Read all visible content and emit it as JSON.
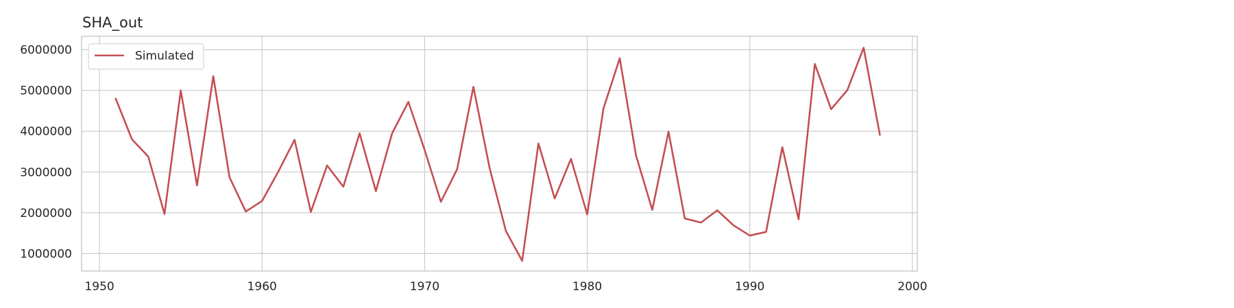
{
  "chart_data": {
    "type": "line",
    "title": "SHA_out",
    "xlabel": "",
    "ylabel": "",
    "xlim": [
      1948.9,
      2000.3
    ],
    "ylim": [
      570000,
      6330000
    ],
    "x_ticks": [
      1950,
      1960,
      1970,
      1980,
      1990,
      2000
    ],
    "y_ticks": [
      1000000,
      2000000,
      3000000,
      4000000,
      5000000,
      6000000
    ],
    "grid": true,
    "legend_position": "top-left",
    "series": [
      {
        "name": "Simulated",
        "color": "#c44e52",
        "x": [
          1951,
          1952,
          1953,
          1954,
          1955,
          1956,
          1957,
          1958,
          1959,
          1960,
          1961,
          1962,
          1963,
          1964,
          1965,
          1966,
          1967,
          1968,
          1969,
          1970,
          1971,
          1972,
          1973,
          1974,
          1975,
          1976,
          1977,
          1978,
          1979,
          1980,
          1981,
          1982,
          1983,
          1984,
          1985,
          1986,
          1987,
          1988,
          1989,
          1990,
          1991,
          1992,
          1993,
          1994,
          1995,
          1996,
          1997,
          1998
        ],
        "values": [
          4800000,
          3800000,
          3380000,
          1970000,
          5000000,
          2670000,
          5350000,
          2870000,
          2030000,
          2290000,
          3010000,
          3790000,
          2020000,
          3160000,
          2640000,
          3950000,
          2530000,
          3950000,
          4720000,
          3540000,
          2270000,
          3070000,
          5090000,
          3090000,
          1550000,
          820000,
          3700000,
          2350000,
          3320000,
          1960000,
          4560000,
          5790000,
          3410000,
          2070000,
          3990000,
          1860000,
          1760000,
          2060000,
          1690000,
          1440000,
          1530000,
          3610000,
          1840000,
          5650000,
          4540000,
          5010000,
          6050000,
          3910000
        ]
      }
    ]
  }
}
